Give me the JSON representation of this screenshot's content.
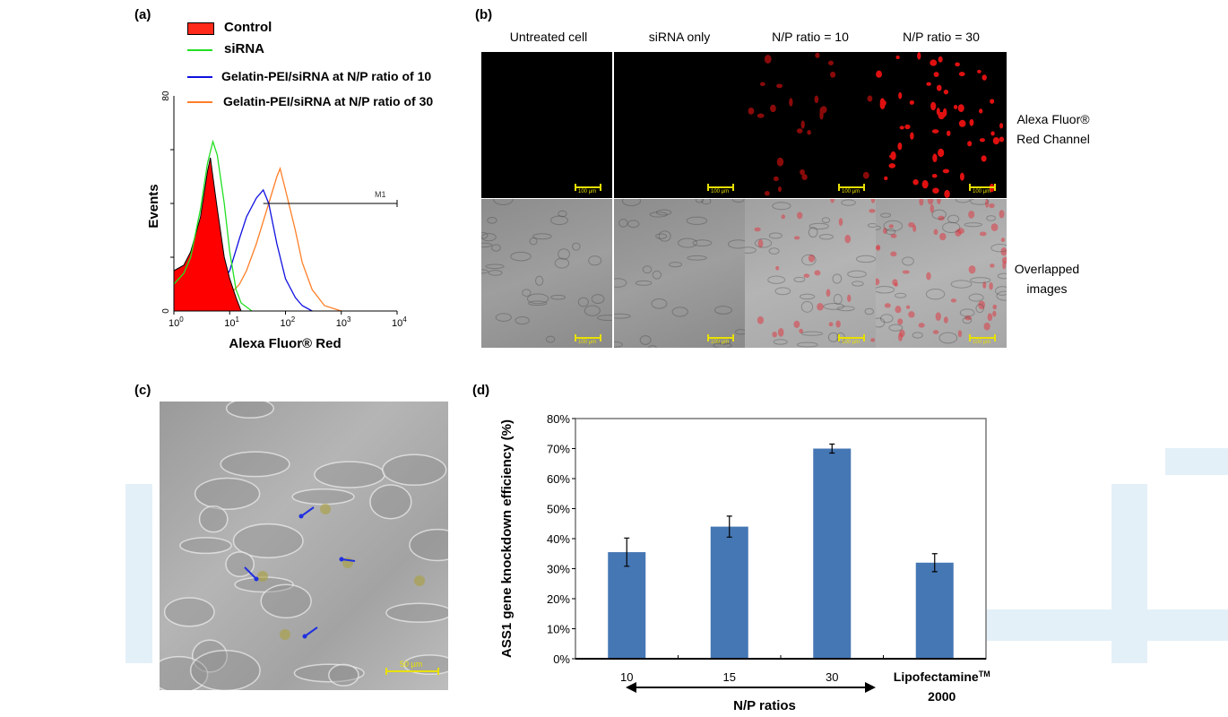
{
  "panels": {
    "a": {
      "label": "(a)"
    },
    "b": {
      "label": "(b)",
      "columns": [
        "Untreated  cell",
        "siRNA only",
        "N/P ratio = 10",
        "N/P ratio = 30"
      ],
      "rows": [
        {
          "label_line1": "Alexa Fluor®",
          "label_line2": "Red Channel"
        },
        {
          "label_line1": "Overlapped",
          "label_line2": "images"
        }
      ],
      "scale_bar": "100 µm"
    },
    "c": {
      "label": "(c)",
      "scale_bar": "50 µm"
    },
    "d": {
      "label": "(d)"
    }
  },
  "chart_data": [
    {
      "type": "line",
      "title": "",
      "xlabel": "Alexa Fluor® Red",
      "ylabel": "Events",
      "xscale": "log",
      "xlim": [
        1,
        10000
      ],
      "ylim": [
        0,
        80
      ],
      "x_tick_labels": [
        {
          "base": "10",
          "exp": "0"
        },
        {
          "base": "10",
          "exp": "1"
        },
        {
          "base": "10",
          "exp": "2"
        },
        {
          "base": "10",
          "exp": "3"
        },
        {
          "base": "10",
          "exp": "4"
        }
      ],
      "y_tick_labels": [
        "0",
        "80"
      ],
      "legend_position": "top",
      "marker": {
        "label": "M1",
        "from": 40,
        "to": 10000,
        "level": 40
      },
      "series": [
        {
          "name": "Control",
          "color": "#ff0000",
          "filled": true,
          "points": [
            [
              1,
              15
            ],
            [
              1.5,
              17
            ],
            [
              2,
              22
            ],
            [
              3,
              35
            ],
            [
              4,
              52
            ],
            [
              4.5,
              57
            ],
            [
              5,
              50
            ],
            [
              6,
              38
            ],
            [
              8,
              20
            ],
            [
              10,
              12
            ],
            [
              13,
              5
            ],
            [
              16,
              0
            ]
          ]
        },
        {
          "name": "siRNA",
          "color": "#22e022",
          "filled": false,
          "points": [
            [
              1,
              10
            ],
            [
              1.5,
              14
            ],
            [
              2,
              20
            ],
            [
              3,
              38
            ],
            [
              4,
              55
            ],
            [
              5,
              63
            ],
            [
              6,
              58
            ],
            [
              8,
              40
            ],
            [
              10,
              22
            ],
            [
              13,
              8
            ],
            [
              16,
              3
            ],
            [
              25,
              0
            ]
          ]
        },
        {
          "name": "Gelatin-PEI/siRNA at N/P ratio of 10",
          "color": "#1010e0",
          "filled": false,
          "points": [
            [
              1,
              3
            ],
            [
              3,
              4
            ],
            [
              6,
              8
            ],
            [
              10,
              15
            ],
            [
              15,
              27
            ],
            [
              20,
              35
            ],
            [
              30,
              42
            ],
            [
              40,
              45
            ],
            [
              50,
              40
            ],
            [
              70,
              25
            ],
            [
              100,
              12
            ],
            [
              150,
              5
            ],
            [
              200,
              2
            ],
            [
              300,
              0
            ]
          ]
        },
        {
          "name": "Gelatin-PEI/siRNA at N/P ratio of 30",
          "color": "#ff7f27",
          "filled": false,
          "points": [
            [
              1,
              2
            ],
            [
              5,
              3
            ],
            [
              10,
              6
            ],
            [
              15,
              10
            ],
            [
              20,
              15
            ],
            [
              30,
              25
            ],
            [
              50,
              40
            ],
            [
              70,
              50
            ],
            [
              80,
              53
            ],
            [
              100,
              45
            ],
            [
              150,
              30
            ],
            [
              200,
              18
            ],
            [
              300,
              8
            ],
            [
              500,
              2
            ],
            [
              1000,
              0
            ]
          ]
        }
      ]
    },
    {
      "type": "bar",
      "title": "",
      "xlabel": "N/P ratios",
      "ylabel": "ASS1 gene knockdown efficiency (%)",
      "categories": [
        "10",
        "15",
        "30",
        "Lipofectamine™ 2000"
      ],
      "category_labels": [
        {
          "line1": "10"
        },
        {
          "line1": "15"
        },
        {
          "line1": "30"
        },
        {
          "line1": "Lipofectamine",
          "sup": "TM",
          "line2": "2000"
        }
      ],
      "values": [
        35.5,
        44,
        70,
        32
      ],
      "errors": [
        4.7,
        3.5,
        1.5,
        3
      ],
      "ylim": [
        0,
        80
      ],
      "y_tick_labels": [
        "0%",
        "10%",
        "20%",
        "30%",
        "40%",
        "50%",
        "60%",
        "70%",
        "80%"
      ],
      "bar_color": "#4577b4",
      "grid": false
    }
  ]
}
